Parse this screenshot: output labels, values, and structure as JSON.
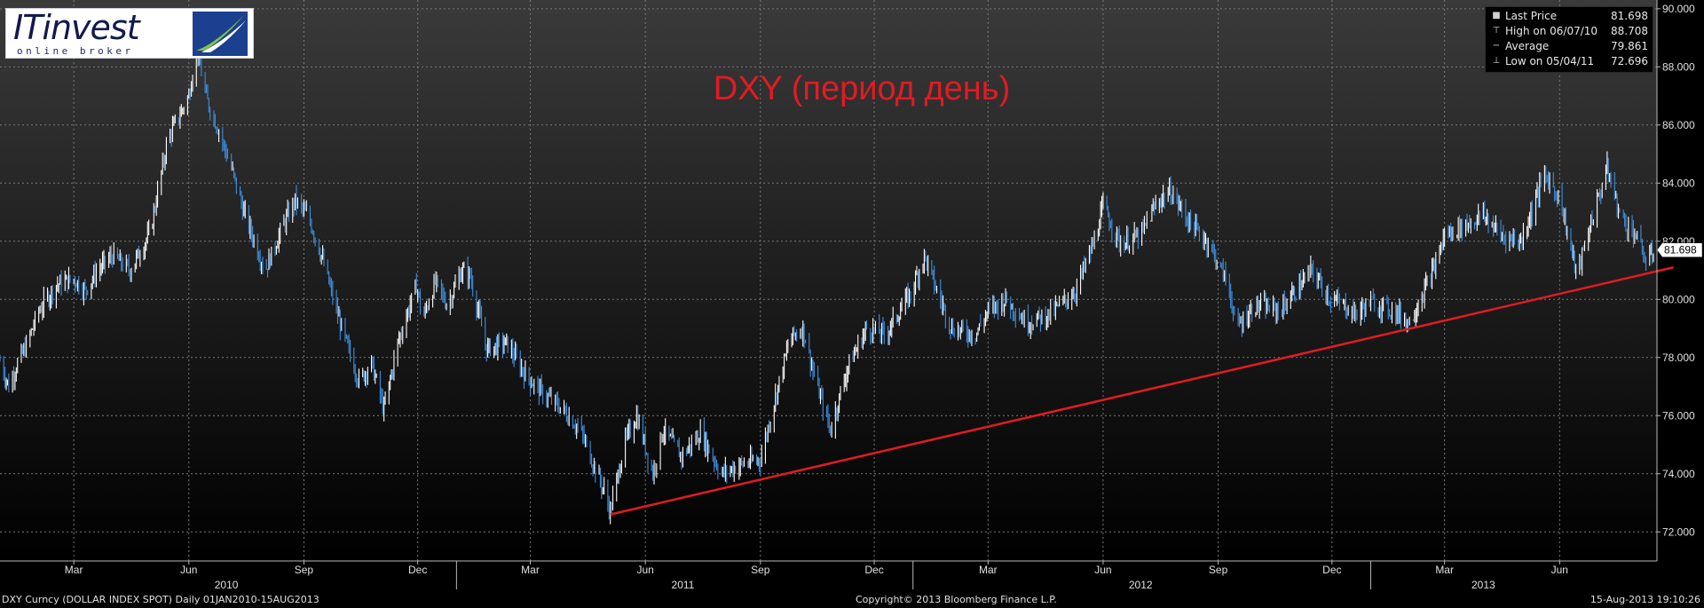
{
  "header": {
    "title": "DXY (период день)"
  },
  "logo": {
    "name": "ITinvest",
    "subtitle": "online broker"
  },
  "legend": {
    "items": [
      {
        "icon": "square-icon",
        "label": "Last Price",
        "value": "81.698"
      },
      {
        "icon": "high-marker-icon",
        "label": "High on 06/07/10",
        "value": "88.708"
      },
      {
        "icon": "average-marker-icon",
        "label": "Average",
        "value": "79.861"
      },
      {
        "icon": "low-marker-icon",
        "label": "Low on 05/04/11",
        "value": "72.696"
      }
    ]
  },
  "footer": {
    "left": "DXY Curncy (DOLLAR INDEX SPOT)  Daily 01JAN2010-15AUG2013",
    "center": "Copyright© 2013 Bloomberg Finance L.P.",
    "right": "15-Aug-2013 19:10:26"
  },
  "colors": {
    "background_top": "#3a3a3a",
    "background_bottom": "#000000",
    "up_bar": "#ffffff",
    "down_bar": "#3d8ede",
    "trendline": "#e11b22",
    "title": "#e11b22"
  },
  "chart_data": {
    "type": "line",
    "title": "DXY (период день)",
    "xlabel": "",
    "ylabel": "",
    "ylim": [
      71.0,
      90.3
    ],
    "xlim": [
      "2010-01-01",
      "2013-08-15"
    ],
    "y_ticks": [
      "72.000",
      "74.000",
      "76.000",
      "78.000",
      "80.000",
      "82.000",
      "84.000",
      "86.000",
      "88.000",
      "90.000"
    ],
    "x_month_ticks": [
      {
        "label": "Mar",
        "date": "2010-03-01"
      },
      {
        "label": "Jun",
        "date": "2010-06-01"
      },
      {
        "label": "Sep",
        "date": "2010-09-01"
      },
      {
        "label": "Dec",
        "date": "2010-12-01"
      },
      {
        "label": "Mar",
        "date": "2011-03-01"
      },
      {
        "label": "Jun",
        "date": "2011-06-01"
      },
      {
        "label": "Sep",
        "date": "2011-09-01"
      },
      {
        "label": "Dec",
        "date": "2011-12-01"
      },
      {
        "label": "Mar",
        "date": "2012-03-01"
      },
      {
        "label": "Jun",
        "date": "2012-06-01"
      },
      {
        "label": "Sep",
        "date": "2012-09-01"
      },
      {
        "label": "Dec",
        "date": "2012-12-01"
      },
      {
        "label": "Mar",
        "date": "2013-03-01"
      },
      {
        "label": "Jun",
        "date": "2013-06-01"
      }
    ],
    "x_year_labels": [
      {
        "label": "2010",
        "date": "2010-07-01"
      },
      {
        "label": "2011",
        "date": "2011-07-01"
      },
      {
        "label": "2012",
        "date": "2012-07-01"
      },
      {
        "label": "2013",
        "date": "2013-04-01"
      }
    ],
    "x_year_boundaries": [
      "2011-01-01",
      "2012-01-01",
      "2013-01-01"
    ],
    "grid": true,
    "last_price_label": "81.698",
    "series": [
      {
        "name": "DXY Curncy",
        "points": [
          [
            "2010-01-01",
            77.9
          ],
          [
            "2010-01-08",
            77.0
          ],
          [
            "2010-01-15",
            77.8
          ],
          [
            "2010-01-22",
            78.4
          ],
          [
            "2010-02-01",
            79.6
          ],
          [
            "2010-02-15",
            80.5
          ],
          [
            "2010-03-01",
            80.7
          ],
          [
            "2010-03-10",
            80.3
          ],
          [
            "2010-03-20",
            81.0
          ],
          [
            "2010-04-01",
            81.5
          ],
          [
            "2010-04-15",
            81.0
          ],
          [
            "2010-05-01",
            82.3
          ],
          [
            "2010-05-15",
            85.5
          ],
          [
            "2010-06-01",
            87.0
          ],
          [
            "2010-06-07",
            88.7
          ],
          [
            "2010-06-15",
            86.9
          ],
          [
            "2010-06-25",
            85.8
          ],
          [
            "2010-07-05",
            84.5
          ],
          [
            "2010-07-15",
            83.0
          ],
          [
            "2010-08-01",
            81.0
          ],
          [
            "2010-08-15",
            82.5
          ],
          [
            "2010-08-25",
            83.4
          ],
          [
            "2010-09-05",
            82.8
          ],
          [
            "2010-09-15",
            81.5
          ],
          [
            "2010-10-01",
            79.0
          ],
          [
            "2010-10-15",
            77.2
          ],
          [
            "2010-10-25",
            77.8
          ],
          [
            "2010-11-04",
            76.2
          ],
          [
            "2010-11-15",
            78.5
          ],
          [
            "2010-11-30",
            80.5
          ],
          [
            "2010-12-05",
            79.3
          ],
          [
            "2010-12-15",
            80.6
          ],
          [
            "2010-12-25",
            79.8
          ],
          [
            "2011-01-05",
            81.0
          ],
          [
            "2011-01-12",
            80.8
          ],
          [
            "2011-01-25",
            78.3
          ],
          [
            "2011-02-10",
            78.5
          ],
          [
            "2011-02-25",
            77.4
          ],
          [
            "2011-03-10",
            76.8
          ],
          [
            "2011-03-25",
            76.3
          ],
          [
            "2011-04-10",
            75.5
          ],
          [
            "2011-04-29",
            73.4
          ],
          [
            "2011-05-04",
            72.7
          ],
          [
            "2011-05-15",
            75.0
          ],
          [
            "2011-05-25",
            76.0
          ],
          [
            "2011-06-07",
            74.0
          ],
          [
            "2011-06-15",
            75.5
          ],
          [
            "2011-06-30",
            74.6
          ],
          [
            "2011-07-15",
            75.4
          ],
          [
            "2011-08-01",
            74.0
          ],
          [
            "2011-08-15",
            74.3
          ],
          [
            "2011-09-01",
            74.5
          ],
          [
            "2011-09-15",
            77.0
          ],
          [
            "2011-09-25",
            78.7
          ],
          [
            "2011-10-05",
            79.0
          ],
          [
            "2011-10-15",
            77.2
          ],
          [
            "2011-10-27",
            75.5
          ],
          [
            "2011-11-10",
            77.7
          ],
          [
            "2011-11-25",
            79.0
          ],
          [
            "2011-12-10",
            78.8
          ],
          [
            "2011-12-30",
            80.2
          ],
          [
            "2012-01-10",
            81.5
          ],
          [
            "2012-01-20",
            80.3
          ],
          [
            "2012-02-01",
            79.0
          ],
          [
            "2012-02-20",
            78.8
          ],
          [
            "2012-03-01",
            79.6
          ],
          [
            "2012-03-15",
            80.0
          ],
          [
            "2012-04-01",
            79.2
          ],
          [
            "2012-04-20",
            79.5
          ],
          [
            "2012-05-10",
            80.3
          ],
          [
            "2012-05-25",
            82.0
          ],
          [
            "2012-06-01",
            83.2
          ],
          [
            "2012-06-15",
            81.9
          ],
          [
            "2012-07-01",
            82.2
          ],
          [
            "2012-07-15",
            83.4
          ],
          [
            "2012-07-25",
            83.7
          ],
          [
            "2012-08-10",
            82.6
          ],
          [
            "2012-08-25",
            81.9
          ],
          [
            "2012-09-10",
            80.4
          ],
          [
            "2012-09-15",
            79.0
          ],
          [
            "2012-10-01",
            79.8
          ],
          [
            "2012-10-20",
            79.6
          ],
          [
            "2012-11-15",
            81.0
          ],
          [
            "2012-11-30",
            80.0
          ],
          [
            "2012-12-10",
            79.8
          ],
          [
            "2012-12-20",
            79.5
          ],
          [
            "2013-01-01",
            79.9
          ],
          [
            "2013-01-20",
            79.6
          ],
          [
            "2013-02-01",
            79.2
          ],
          [
            "2013-02-20",
            81.0
          ],
          [
            "2013-03-01",
            82.2
          ],
          [
            "2013-03-15",
            82.5
          ],
          [
            "2013-04-01",
            82.9
          ],
          [
            "2013-04-15",
            82.2
          ],
          [
            "2013-05-01",
            82.0
          ],
          [
            "2013-05-20",
            84.3
          ],
          [
            "2013-06-01",
            83.5
          ],
          [
            "2013-06-15",
            80.8
          ],
          [
            "2013-06-25",
            82.5
          ],
          [
            "2013-07-09",
            84.5
          ],
          [
            "2013-07-20",
            82.8
          ],
          [
            "2013-08-01",
            82.2
          ],
          [
            "2013-08-10",
            81.2
          ],
          [
            "2013-08-15",
            81.698
          ]
        ]
      }
    ],
    "annotations": [
      {
        "type": "trendline",
        "from": [
          "2011-05-04",
          72.6
        ],
        "to": [
          "2013-08-31",
          81.1
        ]
      }
    ]
  }
}
